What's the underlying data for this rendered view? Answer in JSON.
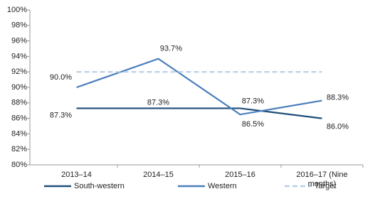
{
  "chart_data": {
    "type": "line",
    "categories": [
      "2013–14",
      "2014–15",
      "2015–16",
      "2016–17 (Nine months)"
    ],
    "series": [
      {
        "name": "South-western",
        "color": "#1f4e79",
        "values": [
          87.3,
          87.3,
          87.3,
          86.0
        ],
        "value_labels": [
          "87.3%",
          "87.3%",
          "87.3%",
          "86.0%"
        ]
      },
      {
        "name": "Western",
        "color": "#4a7ebb",
        "values": [
          90.0,
          93.7,
          86.5,
          88.3
        ],
        "value_labels": [
          "90.0%",
          "93.7%",
          "86.5%",
          "88.3%"
        ]
      },
      {
        "name": "Target",
        "color": "#b9cde5",
        "dashed": true,
        "values": [
          92,
          92,
          92,
          92
        ]
      }
    ],
    "ylim": [
      80,
      100
    ],
    "yticks": [
      {
        "value": 80,
        "label": "80%"
      },
      {
        "value": 82,
        "label": "82%"
      },
      {
        "value": 84,
        "label": "84%"
      },
      {
        "value": 86,
        "label": "86%"
      },
      {
        "value": 88,
        "label": "88%"
      },
      {
        "value": 90,
        "label": "90%"
      },
      {
        "value": 92,
        "label": "92%"
      },
      {
        "value": 94,
        "label": "94%"
      },
      {
        "value": 96,
        "label": "96%"
      },
      {
        "value": 98,
        "label": "98%"
      },
      {
        "value": 100,
        "label": "100%"
      }
    ],
    "legend": "bottom"
  }
}
